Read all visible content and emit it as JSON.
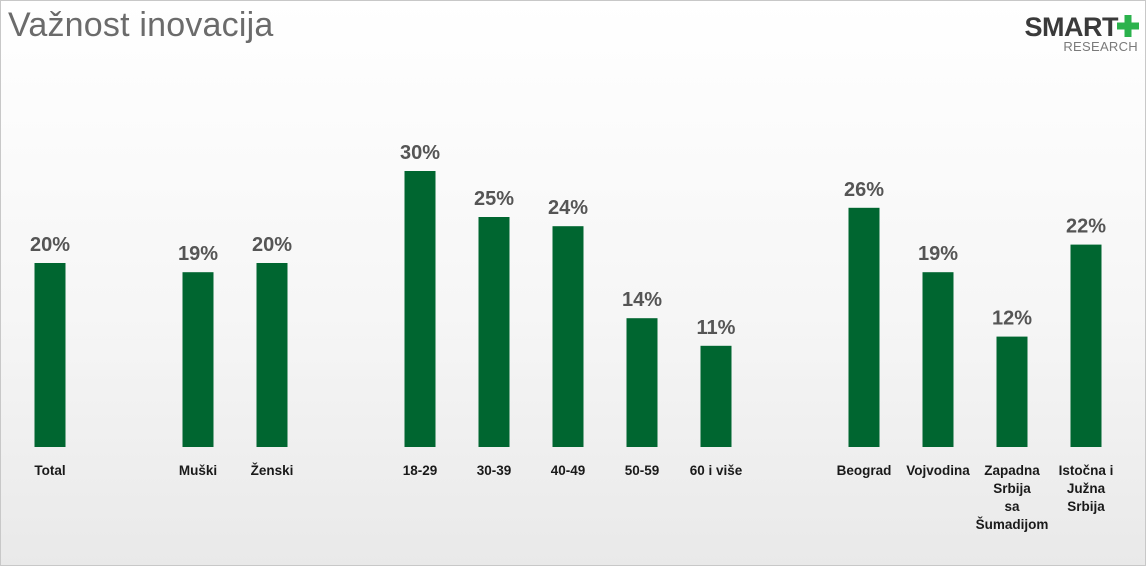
{
  "header": {
    "title": "Važnost inovacija"
  },
  "logo": {
    "word": "SMART",
    "sub": "RESEARCH",
    "plus_color": "#2bb24c"
  },
  "colors": {
    "bar": "#006630",
    "value_label": "#555555"
  },
  "chart_data": {
    "type": "bar",
    "title": "Važnost inovacija",
    "xlabel": "",
    "ylabel": "",
    "ylim": [
      0,
      30
    ],
    "grid": false,
    "legend": "none",
    "value_format": "percent",
    "categories": [
      [
        "Total"
      ],
      [
        "Muški"
      ],
      [
        "Ženski"
      ],
      [
        "18-29"
      ],
      [
        "30-39"
      ],
      [
        "40-49"
      ],
      [
        "50-59"
      ],
      [
        "60 i više"
      ],
      [
        "Beograd"
      ],
      [
        "Vojvodina"
      ],
      [
        "Zapadna",
        "Srbija",
        "sa",
        "Šumadijom"
      ],
      [
        "Istočna i",
        "Južna",
        "Srbija"
      ]
    ],
    "values": [
      20,
      19,
      20,
      30,
      25,
      24,
      14,
      11,
      26,
      19,
      12,
      22
    ],
    "value_labels": [
      "20%",
      "19%",
      "20%",
      "30%",
      "25%",
      "24%",
      "14%",
      "11%",
      "26%",
      "19%",
      "12%",
      "22%"
    ]
  }
}
